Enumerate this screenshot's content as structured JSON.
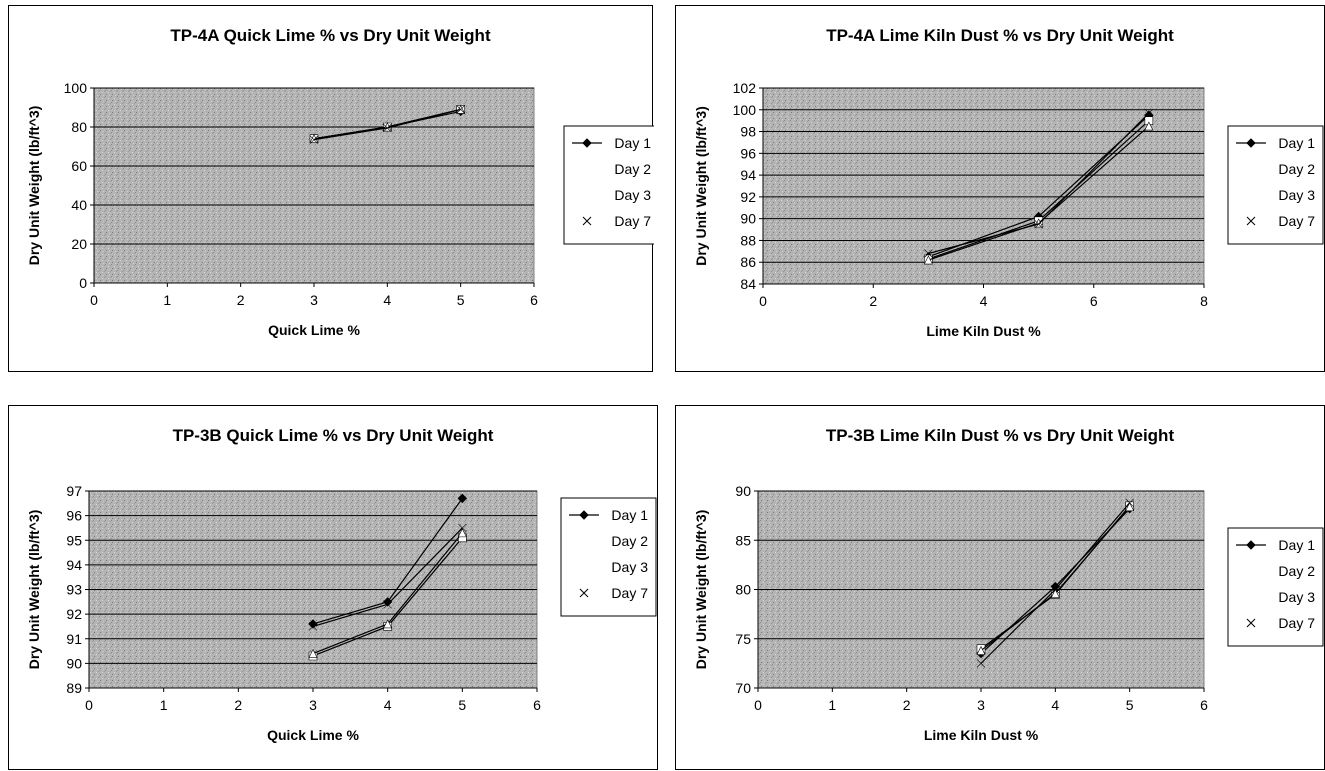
{
  "chart_data": [
    {
      "type": "line",
      "title": "TP-4A Quick Lime % vs Dry Unit Weight",
      "xlabel": "Quick Lime %",
      "ylabel": "Dry Unit Weight (lb/ft^3)",
      "xlim": [
        0,
        6
      ],
      "ylim": [
        0,
        100
      ],
      "xticks": [
        0,
        1,
        2,
        3,
        4,
        5,
        6
      ],
      "yticks": [
        0,
        20,
        40,
        60,
        80,
        100
      ],
      "grid": true,
      "legend_position": "right",
      "series": [
        {
          "name": "Day 1",
          "marker": "diamond",
          "color": "#000000",
          "x": [
            3,
            4,
            5
          ],
          "values": [
            74,
            80,
            88
          ]
        },
        {
          "name": "Day 2",
          "marker": "square",
          "color": "#ffffff",
          "x": [
            3,
            4,
            5
          ],
          "values": [
            74,
            80,
            89
          ]
        },
        {
          "name": "Day 3",
          "marker": "triangle",
          "color": "#ffffff",
          "x": [
            3,
            4,
            5
          ],
          "values": [
            74,
            80,
            89
          ]
        },
        {
          "name": "Day 7",
          "marker": "x",
          "color": "#ffffff",
          "x": [
            3,
            4,
            5
          ],
          "values": [
            73.5,
            79.5,
            89
          ]
        }
      ]
    },
    {
      "type": "line",
      "title": "TP-4A Lime Kiln Dust % vs Dry Unit Weight",
      "xlabel": "Lime Kiln Dust %",
      "ylabel": "Dry Unit Weight (lb/ft^3)",
      "xlim": [
        0,
        8
      ],
      "ylim": [
        84,
        102
      ],
      "xticks": [
        0,
        2,
        4,
        6,
        8
      ],
      "yticks": [
        84,
        86,
        88,
        90,
        92,
        94,
        96,
        98,
        100,
        102
      ],
      "grid": true,
      "legend_position": "right",
      "series": [
        {
          "name": "Day 1",
          "marker": "diamond",
          "color": "#000000",
          "x": [
            3,
            5,
            7
          ],
          "values": [
            86.5,
            90.2,
            99.5
          ]
        },
        {
          "name": "Day 2",
          "marker": "square",
          "color": "#ffffff",
          "x": [
            3,
            5,
            7
          ],
          "values": [
            86.3,
            89.8,
            99
          ]
        },
        {
          "name": "Day 3",
          "marker": "triangle",
          "color": "#ffffff",
          "x": [
            3,
            5,
            7
          ],
          "values": [
            86.2,
            89.6,
            98.5
          ]
        },
        {
          "name": "Day 7",
          "marker": "x",
          "color": "#ffffff",
          "x": [
            3,
            5,
            7
          ],
          "values": [
            86.8,
            89.5,
            99.7
          ]
        }
      ]
    },
    {
      "type": "line",
      "title": "TP-3B Quick Lime % vs Dry Unit Weight",
      "xlabel": "Quick Lime %",
      "ylabel": "Dry Unit Weight (lb/ft^3)",
      "xlim": [
        0,
        6
      ],
      "ylim": [
        89,
        97
      ],
      "xticks": [
        0,
        1,
        2,
        3,
        4,
        5,
        6
      ],
      "yticks": [
        89,
        90,
        91,
        92,
        93,
        94,
        95,
        96,
        97
      ],
      "grid": true,
      "legend_position": "right",
      "series": [
        {
          "name": "Day 1",
          "marker": "diamond",
          "color": "#000000",
          "x": [
            3,
            4,
            5
          ],
          "values": [
            91.6,
            92.5,
            96.7
          ]
        },
        {
          "name": "Day 2",
          "marker": "square",
          "color": "#ffffff",
          "x": [
            3,
            4,
            5
          ],
          "values": [
            90.3,
            91.5,
            95.1
          ]
        },
        {
          "name": "Day 3",
          "marker": "triangle",
          "color": "#ffffff",
          "x": [
            3,
            4,
            5
          ],
          "values": [
            90.4,
            91.6,
            95.3
          ]
        },
        {
          "name": "Day 7",
          "marker": "x",
          "color": "#ffffff",
          "x": [
            3,
            4,
            5
          ],
          "values": [
            91.5,
            92.4,
            95.5
          ]
        }
      ]
    },
    {
      "type": "line",
      "title": "TP-3B Lime Kiln Dust % vs Dry Unit Weight",
      "xlabel": "Lime Kiln Dust %",
      "ylabel": "Dry Unit Weight (lb/ft^3)",
      "xlim": [
        0,
        6
      ],
      "ylim": [
        70,
        90
      ],
      "xticks": [
        0,
        1,
        2,
        3,
        4,
        5,
        6
      ],
      "yticks": [
        70,
        75,
        80,
        85,
        90
      ],
      "grid": true,
      "legend_position": "right",
      "series": [
        {
          "name": "Day 1",
          "marker": "diamond",
          "color": "#000000",
          "x": [
            3,
            4,
            5
          ],
          "values": [
            73.5,
            80.3,
            88.2
          ]
        },
        {
          "name": "Day 2",
          "marker": "square",
          "color": "#ffffff",
          "x": [
            3,
            4,
            5
          ],
          "values": [
            74,
            79.5,
            88.5
          ]
        },
        {
          "name": "Day 3",
          "marker": "triangle",
          "color": "#ffffff",
          "x": [
            3,
            4,
            5
          ],
          "values": [
            73.8,
            79.6,
            88.4
          ]
        },
        {
          "name": "Day 7",
          "marker": "x",
          "color": "#ffffff",
          "x": [
            3,
            4,
            5
          ],
          "values": [
            72.5,
            80,
            88.8
          ]
        }
      ]
    }
  ]
}
